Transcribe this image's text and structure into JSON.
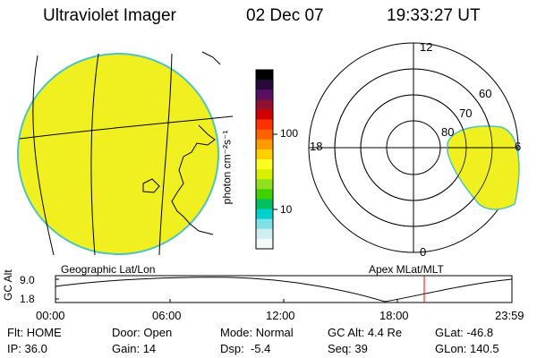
{
  "header": {
    "instrument": "Ultraviolet Imager",
    "date": "02 Dec 07",
    "time": "19:33:27 UT"
  },
  "left_panel": {
    "label": "Geographic Lat/Lon",
    "fill_color": "#f0f020",
    "limb_color": "#4fc3c0"
  },
  "colorbar": {
    "unit_label": "photon cm⁻²s⁻¹",
    "ticks": [
      "100",
      "10"
    ],
    "colors": [
      "#000000",
      "#2a0a3a",
      "#5a1060",
      "#901030",
      "#d00000",
      "#ff3000",
      "#ff6000",
      "#ff9a00",
      "#ffd000",
      "#ffff20",
      "#d8f000",
      "#90e020",
      "#40d000",
      "#00c060",
      "#00d0d0",
      "#80e0e8",
      "#d0eef0",
      "#f4f8f8"
    ]
  },
  "right_panel": {
    "label": "Apex MLat/MLT",
    "mlt_labels": {
      "top": "12",
      "left": "18",
      "right": "6",
      "bottom": "0"
    },
    "lat_labels": [
      "60",
      "70",
      "80"
    ]
  },
  "altitude_plot": {
    "ylabel": "GC Alt",
    "yticks": [
      "9.0",
      "1.8"
    ],
    "xticks": [
      "00:00",
      "06:00",
      "12:00",
      "18:00",
      "23:59"
    ],
    "current_marker_color": "#ff0000"
  },
  "status": {
    "row1": [
      {
        "label": "Flt:",
        "value": "HOME"
      },
      {
        "label": "Door:",
        "value": "Open"
      },
      {
        "label": "Mode:",
        "value": "Normal"
      },
      {
        "label": "GC Alt:",
        "value": "4.4 Re"
      },
      {
        "label": "GLat:",
        "value": "-46.8"
      }
    ],
    "row2": [
      {
        "label": "IP:",
        "value": "36.0"
      },
      {
        "label": "Gain:",
        "value": "14"
      },
      {
        "label": "Dsp:",
        "value": "-5.4"
      },
      {
        "label": "Seq:",
        "value": "39"
      },
      {
        "label": "GLon:",
        "value": "140.5"
      }
    ]
  }
}
